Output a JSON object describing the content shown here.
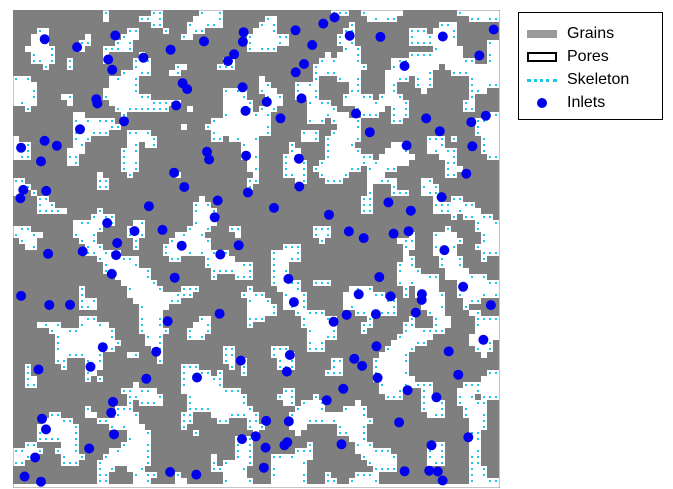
{
  "legend": {
    "items": [
      {
        "label": "Grains",
        "color": "#7f7f7f"
      },
      {
        "label": "Pores",
        "color": "#ffffff"
      },
      {
        "label": "Skeleton",
        "color": "#19c8e6"
      },
      {
        "label": "Inlets",
        "color": "#0000ee"
      }
    ]
  },
  "colors": {
    "grain": "#7f7f7f",
    "pore": "#ffffff",
    "skeleton": "#19c8e6",
    "inlet": "#0000ee",
    "frame": "#888888"
  }
}
